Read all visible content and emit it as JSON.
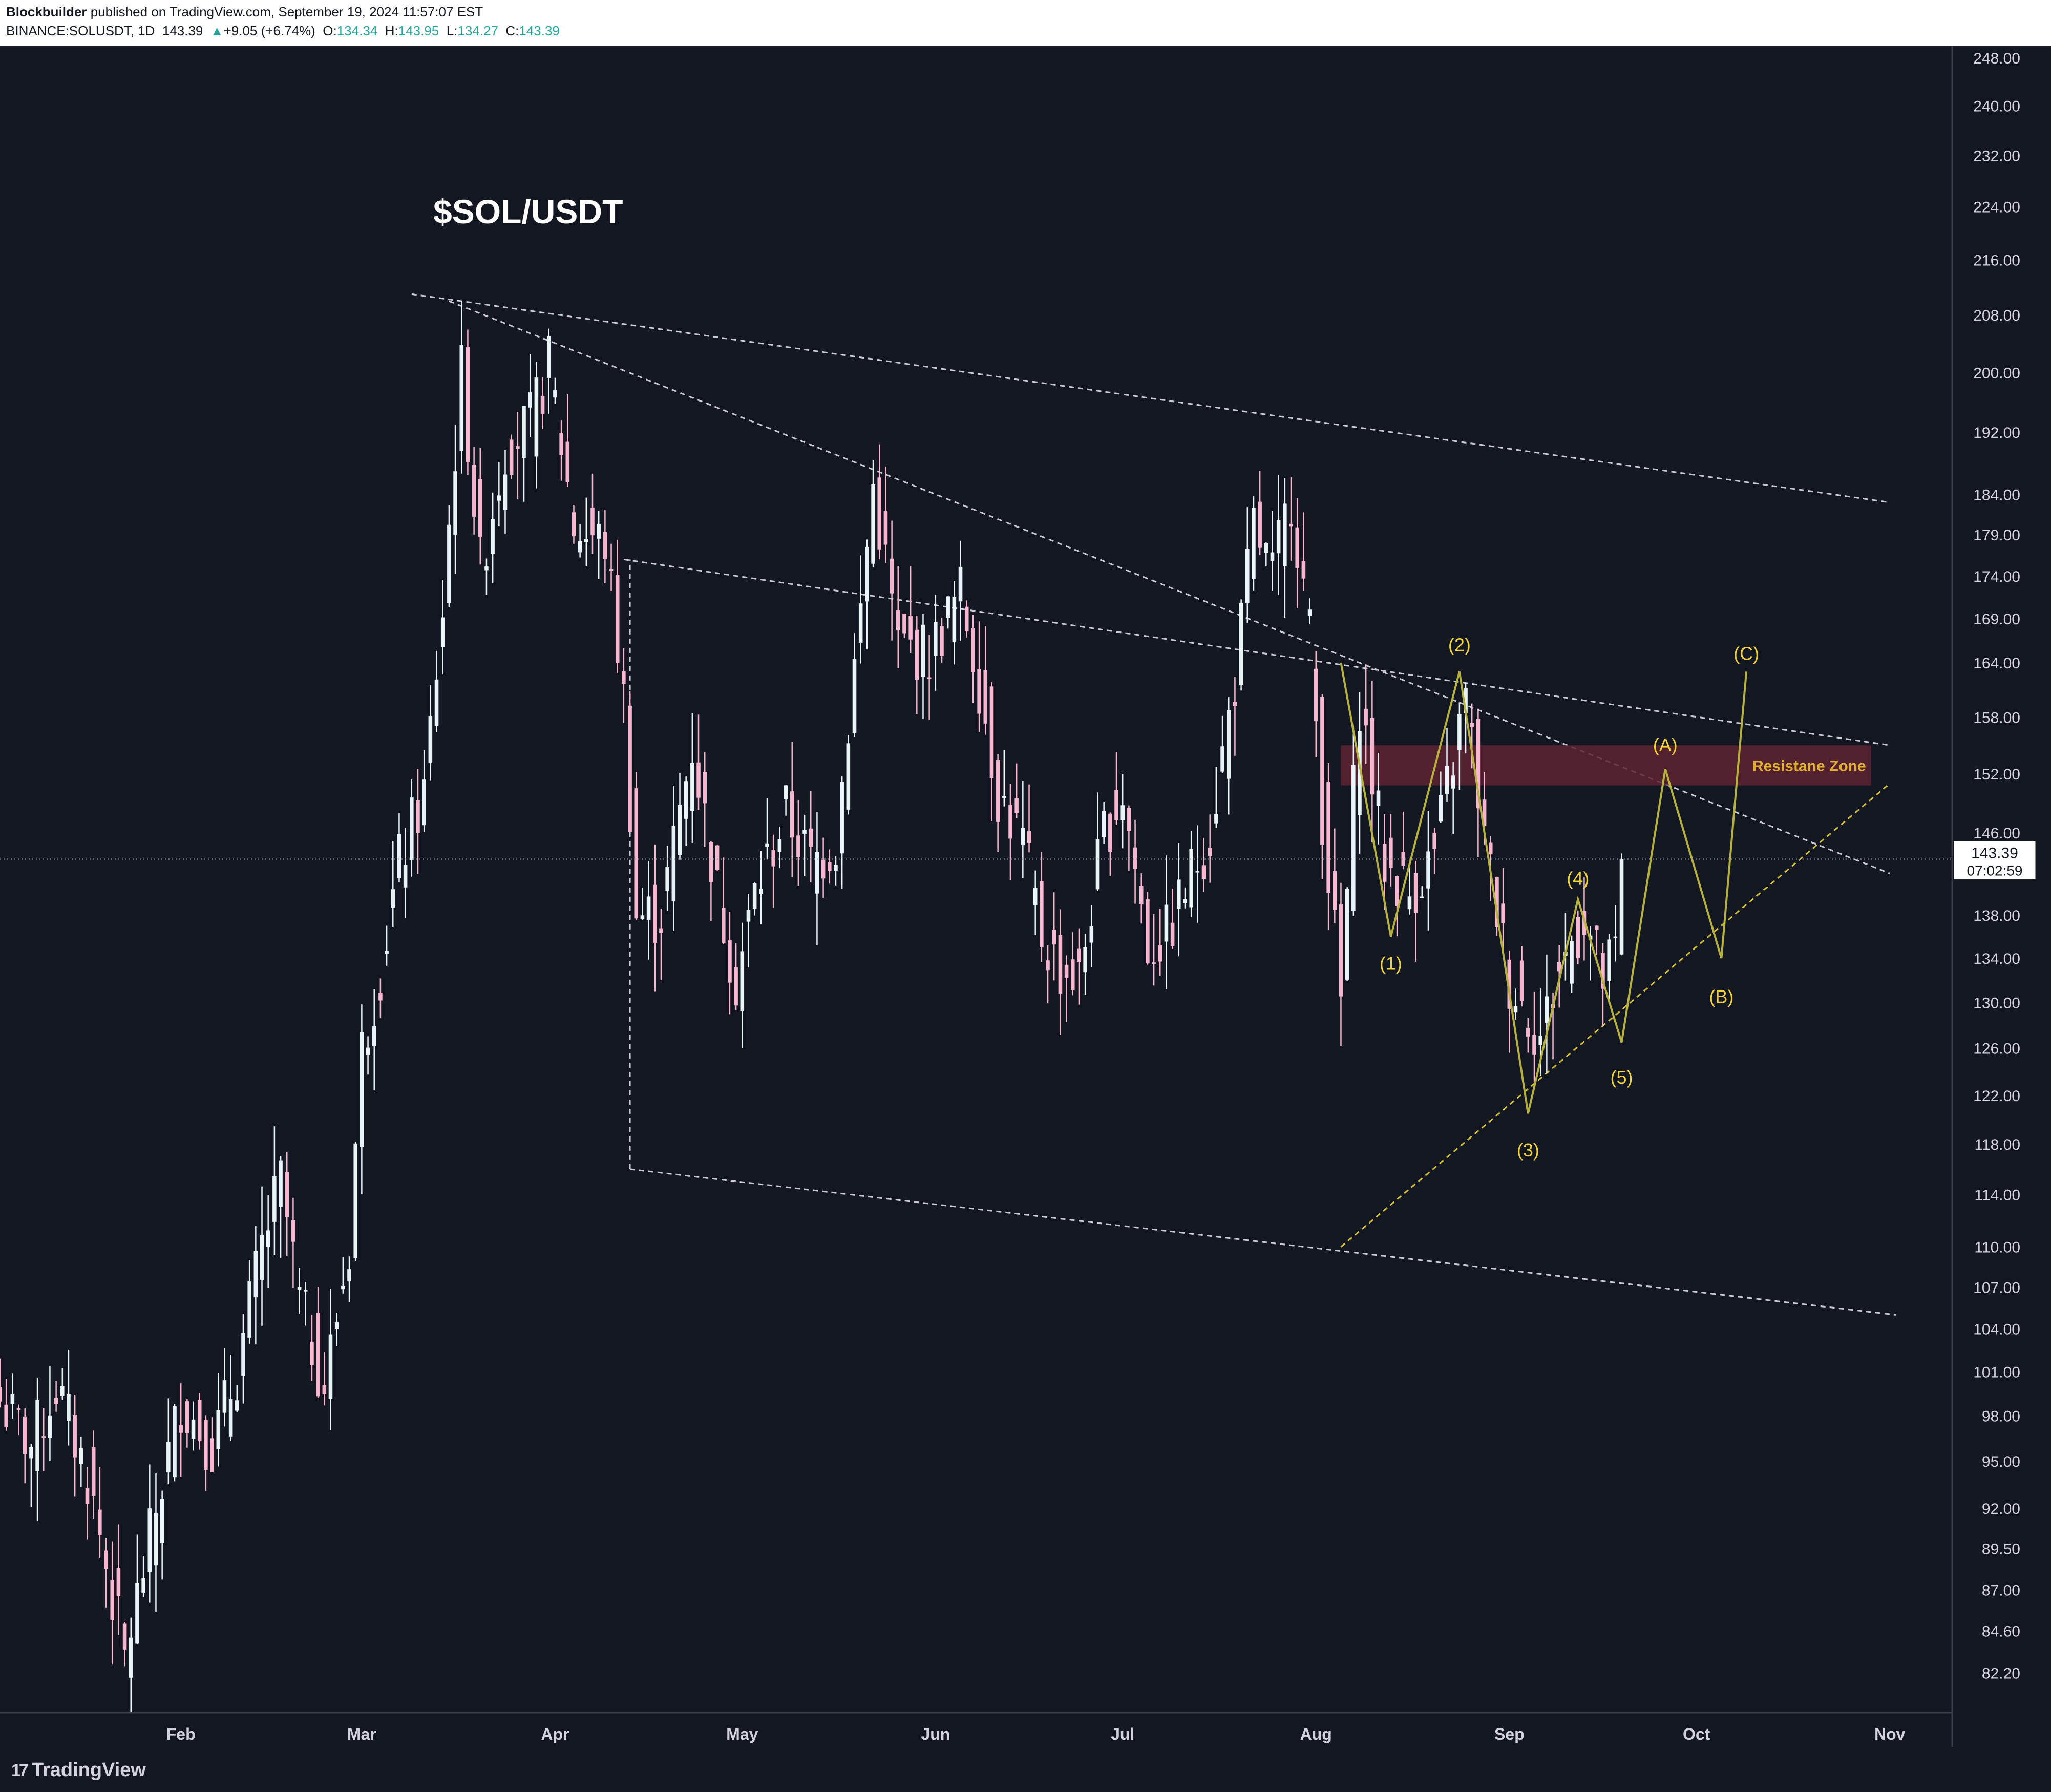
{
  "header": {
    "author": "Blockbuilder",
    "published": "published on TradingView.com, September 19, 2024 11:57:07 EST",
    "symbol": "BINANCE:SOLUSDT, 1D",
    "last": "143.39",
    "change": "+9.05 (+6.74%)",
    "o_label": "O:",
    "o_value": "134.34",
    "h_label": "H:",
    "h_value": "143.95",
    "l_label": "L:",
    "l_value": "134.27",
    "c_label": "C:",
    "c_value": "143.39"
  },
  "footer": {
    "brand": "TradingView",
    "brand_icon": "tradingview-logo-icon"
  },
  "colors": {
    "background": "#131722",
    "bull_candle": "#e8f4f8",
    "bear_candle": "#f7b6cf",
    "trendline": "#c9ccd6",
    "wave_line": "#b7b23c",
    "wave_label": "#f2d33a",
    "resistance_fill": "#5e2230",
    "resistance_label": "#e0b030"
  },
  "chart_data": {
    "type": "candlestick",
    "title": "$SOL/USDT",
    "symbol": "BINANCE:SOLUSDT",
    "interval": "1D",
    "y_scale": "log",
    "ylim": [
      80,
      250
    ],
    "xlim": [
      "2024-01-03",
      "2024-11-11"
    ],
    "y_ticks": [
      "248.00",
      "240.00",
      "232.00",
      "224.00",
      "216.00",
      "208.00",
      "200.00",
      "192.00",
      "184.00",
      "179.00",
      "174.00",
      "169.00",
      "164.00",
      "158.00",
      "152.00",
      "146.00",
      "138.00",
      "134.00",
      "130.00",
      "126.00",
      "122.00",
      "118.00",
      "114.00",
      "110.00",
      "107.00",
      "104.00",
      "101.00",
      "98.00",
      "95.00",
      "92.00",
      "89.50",
      "87.00",
      "84.60",
      "82.20"
    ],
    "x_ticks": [
      {
        "label": "Feb",
        "date": "2024-02-01"
      },
      {
        "label": "Mar",
        "date": "2024-03-01"
      },
      {
        "label": "Apr",
        "date": "2024-04-01"
      },
      {
        "label": "May",
        "date": "2024-05-01"
      },
      {
        "label": "Jun",
        "date": "2024-06-01"
      },
      {
        "label": "Jul",
        "date": "2024-07-01"
      },
      {
        "label": "Aug",
        "date": "2024-08-01"
      },
      {
        "label": "Sep",
        "date": "2024-09-01"
      },
      {
        "label": "Oct",
        "date": "2024-10-01"
      },
      {
        "label": "Nov",
        "date": "2024-11-01"
      }
    ],
    "price_marker": {
      "price": 143.39,
      "label": "143.39",
      "countdown": "07:02:59"
    },
    "anchors": [
      {
        "date": "2024-01-03",
        "close": 99
      },
      {
        "date": "2024-01-08",
        "close": 96
      },
      {
        "date": "2024-01-12",
        "close": 100
      },
      {
        "date": "2024-01-17",
        "close": 94
      },
      {
        "date": "2024-01-23",
        "close": 83
      },
      {
        "date": "2024-01-27",
        "close": 90
      },
      {
        "date": "2024-02-01",
        "close": 99
      },
      {
        "date": "2024-02-06",
        "close": 96
      },
      {
        "date": "2024-02-10",
        "close": 101
      },
      {
        "date": "2024-02-14",
        "close": 110
      },
      {
        "date": "2024-02-17",
        "close": 115
      },
      {
        "date": "2024-02-20",
        "close": 106
      },
      {
        "date": "2024-02-24",
        "close": 100
      },
      {
        "date": "2024-02-28",
        "close": 110
      },
      {
        "date": "2024-03-01",
        "close": 126
      },
      {
        "date": "2024-03-04",
        "close": 133
      },
      {
        "date": "2024-03-07",
        "close": 143
      },
      {
        "date": "2024-03-11",
        "close": 150
      },
      {
        "date": "2024-03-14",
        "close": 170
      },
      {
        "date": "2024-03-17",
        "close": 200
      },
      {
        "date": "2024-03-20",
        "close": 175
      },
      {
        "date": "2024-03-24",
        "close": 190
      },
      {
        "date": "2024-03-28",
        "close": 193
      },
      {
        "date": "2024-03-31",
        "close": 201
      },
      {
        "date": "2024-04-04",
        "close": 180
      },
      {
        "date": "2024-04-09",
        "close": 178
      },
      {
        "date": "2024-04-12",
        "close": 160
      },
      {
        "date": "2024-04-14",
        "close": 138
      },
      {
        "date": "2024-04-18",
        "close": 138
      },
      {
        "date": "2024-04-23",
        "close": 155
      },
      {
        "date": "2024-04-27",
        "close": 140
      },
      {
        "date": "2024-04-30",
        "close": 132
      },
      {
        "date": "2024-05-03",
        "close": 140
      },
      {
        "date": "2024-05-08",
        "close": 148
      },
      {
        "date": "2024-05-12",
        "close": 143
      },
      {
        "date": "2024-05-16",
        "close": 145
      },
      {
        "date": "2024-05-20",
        "close": 170
      },
      {
        "date": "2024-05-22",
        "close": 185
      },
      {
        "date": "2024-05-26",
        "close": 166
      },
      {
        "date": "2024-05-31",
        "close": 165
      },
      {
        "date": "2024-06-05",
        "close": 172
      },
      {
        "date": "2024-06-08",
        "close": 162
      },
      {
        "date": "2024-06-11",
        "close": 150
      },
      {
        "date": "2024-06-15",
        "close": 145
      },
      {
        "date": "2024-06-18",
        "close": 136
      },
      {
        "date": "2024-06-21",
        "close": 133
      },
      {
        "date": "2024-06-24",
        "close": 132
      },
      {
        "date": "2024-06-28",
        "close": 146
      },
      {
        "date": "2024-07-01",
        "close": 150
      },
      {
        "date": "2024-07-05",
        "close": 135
      },
      {
        "date": "2024-07-08",
        "close": 136
      },
      {
        "date": "2024-07-12",
        "close": 142
      },
      {
        "date": "2024-07-15",
        "close": 146
      },
      {
        "date": "2024-07-19",
        "close": 162
      },
      {
        "date": "2024-07-22",
        "close": 180
      },
      {
        "date": "2024-07-25",
        "close": 174
      },
      {
        "date": "2024-07-28",
        "close": 184
      },
      {
        "date": "2024-07-31",
        "close": 167
      },
      {
        "date": "2024-08-02",
        "close": 148
      },
      {
        "date": "2024-08-05",
        "close": 130
      },
      {
        "date": "2024-08-08",
        "close": 160
      },
      {
        "date": "2024-08-12",
        "close": 143
      },
      {
        "date": "2024-08-16",
        "close": 140
      },
      {
        "date": "2024-08-20",
        "close": 144
      },
      {
        "date": "2024-08-25",
        "close": 160
      },
      {
        "date": "2024-08-28",
        "close": 145
      },
      {
        "date": "2024-09-01",
        "close": 132
      },
      {
        "date": "2024-09-06",
        "close": 127
      },
      {
        "date": "2024-09-09",
        "close": 133
      },
      {
        "date": "2024-09-13",
        "close": 138
      },
      {
        "date": "2024-09-16",
        "close": 132
      },
      {
        "date": "2024-09-18",
        "close": 134.34
      },
      {
        "date": "2024-09-19",
        "close": 143.39
      }
    ],
    "trendlines": [
      {
        "name": "upper-resistance",
        "points": [
          [
            "2024-03-09",
            211
          ],
          [
            "2024-11-01",
            183
          ]
        ]
      },
      {
        "name": "descending-from-high",
        "points": [
          [
            "2024-03-15",
            210
          ],
          [
            "2024-11-01",
            142
          ]
        ]
      },
      {
        "name": "mid-channel",
        "points": [
          [
            "2024-04-12",
            176
          ],
          [
            "2024-11-01",
            155
          ]
        ]
      },
      {
        "name": "lower-channel",
        "points": [
          [
            "2024-04-13",
            116
          ],
          [
            "2024-11-02",
            105
          ]
        ]
      },
      {
        "name": "vertical-tick",
        "points": [
          [
            "2024-04-13",
            116
          ],
          [
            "2024-04-13",
            176
          ]
        ]
      },
      {
        "name": "ascending-support",
        "points": [
          [
            "2024-08-05",
            110
          ],
          [
            "2024-11-01",
            151
          ]
        ]
      }
    ],
    "wave_path": [
      [
        "2024-08-05",
        164
      ],
      [
        "2024-08-13",
        136
      ],
      [
        "2024-08-24",
        163
      ],
      [
        "2024-09-04",
        120.5
      ],
      [
        "2024-09-12",
        139.5
      ],
      [
        "2024-09-19",
        126.5
      ],
      [
        "2024-09-26",
        152.5
      ],
      [
        "2024-10-05",
        134
      ],
      [
        "2024-10-09",
        163
      ]
    ],
    "wave_labels": [
      {
        "text": "(1)",
        "date": "2024-08-13",
        "price": 133.5
      },
      {
        "text": "(2)",
        "date": "2024-08-24",
        "price": 166
      },
      {
        "text": "(3)",
        "date": "2024-09-04",
        "price": 117.5
      },
      {
        "text": "(4)",
        "date": "2024-09-12",
        "price": 141.5
      },
      {
        "text": "(5)",
        "date": "2024-09-19",
        "price": 123.5
      },
      {
        "text": "(A)",
        "date": "2024-09-26",
        "price": 155
      },
      {
        "text": "(B)",
        "date": "2024-10-05",
        "price": 130.5
      },
      {
        "text": "(C)",
        "date": "2024-10-09",
        "price": 165
      }
    ],
    "zones": [
      {
        "label": "Resistane Zone",
        "x_start": "2024-08-05",
        "x_end": "2024-10-29",
        "y_low": 150.8,
        "y_high": 155
      }
    ]
  }
}
